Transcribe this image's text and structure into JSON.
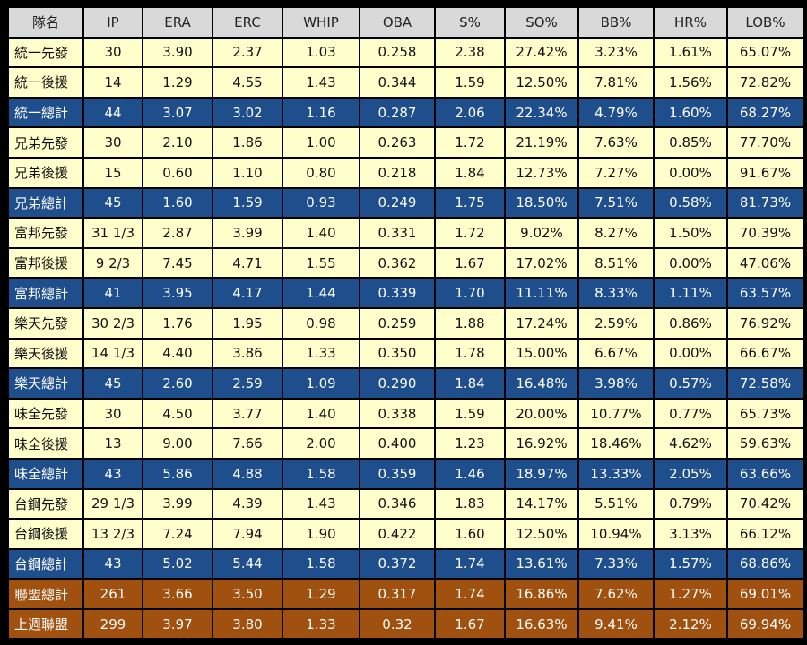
{
  "table": {
    "headers": [
      "隊名",
      "IP",
      "ERA",
      "ERC",
      "WHIP",
      "OBA",
      "S%",
      "SO%",
      "BB%",
      "HR%",
      "LOB%"
    ],
    "rows": [
      {
        "type": "sp",
        "cells": [
          "統一先發",
          "30",
          "3.90",
          "2.37",
          "1.03",
          "0.258",
          "2.38",
          "27.42%",
          "3.23%",
          "1.61%",
          "65.07%"
        ]
      },
      {
        "type": "rp",
        "cells": [
          "統一後援",
          "14",
          "1.29",
          "4.55",
          "1.43",
          "0.344",
          "1.59",
          "12.50%",
          "7.81%",
          "1.56%",
          "72.82%"
        ]
      },
      {
        "type": "team",
        "cells": [
          "統一總計",
          "44",
          "3.07",
          "3.02",
          "1.16",
          "0.287",
          "2.06",
          "22.34%",
          "4.79%",
          "1.60%",
          "68.27%"
        ]
      },
      {
        "type": "sp",
        "cells": [
          "兄弟先發",
          "30",
          "2.10",
          "1.86",
          "1.00",
          "0.263",
          "1.72",
          "21.19%",
          "7.63%",
          "0.85%",
          "77.70%"
        ]
      },
      {
        "type": "rp",
        "cells": [
          "兄弟後援",
          "15",
          "0.60",
          "1.10",
          "0.80",
          "0.218",
          "1.84",
          "12.73%",
          "7.27%",
          "0.00%",
          "91.67%"
        ]
      },
      {
        "type": "team",
        "cells": [
          "兄弟總計",
          "45",
          "1.60",
          "1.59",
          "0.93",
          "0.249",
          "1.75",
          "18.50%",
          "7.51%",
          "0.58%",
          "81.73%"
        ]
      },
      {
        "type": "sp",
        "cells": [
          "富邦先發",
          "31 1/3",
          "2.87",
          "3.99",
          "1.40",
          "0.331",
          "1.72",
          "9.02%",
          "8.27%",
          "1.50%",
          "70.39%"
        ]
      },
      {
        "type": "rp",
        "cells": [
          "富邦後援",
          "9 2/3",
          "7.45",
          "4.71",
          "1.55",
          "0.362",
          "1.67",
          "17.02%",
          "8.51%",
          "0.00%",
          "47.06%"
        ]
      },
      {
        "type": "team",
        "cells": [
          "富邦總計",
          "41",
          "3.95",
          "4.17",
          "1.44",
          "0.339",
          "1.70",
          "11.11%",
          "8.33%",
          "1.11%",
          "63.57%"
        ]
      },
      {
        "type": "sp",
        "cells": [
          "樂天先發",
          "30 2/3",
          "1.76",
          "1.95",
          "0.98",
          "0.259",
          "1.88",
          "17.24%",
          "2.59%",
          "0.86%",
          "76.92%"
        ]
      },
      {
        "type": "rp",
        "cells": [
          "樂天後援",
          "14 1/3",
          "4.40",
          "3.86",
          "1.33",
          "0.350",
          "1.78",
          "15.00%",
          "6.67%",
          "0.00%",
          "66.67%"
        ]
      },
      {
        "type": "team",
        "cells": [
          "樂天總計",
          "45",
          "2.60",
          "2.59",
          "1.09",
          "0.290",
          "1.84",
          "16.48%",
          "3.98%",
          "0.57%",
          "72.58%"
        ]
      },
      {
        "type": "sp",
        "cells": [
          "味全先發",
          "30",
          "4.50",
          "3.77",
          "1.40",
          "0.338",
          "1.59",
          "20.00%",
          "10.77%",
          "0.77%",
          "65.73%"
        ]
      },
      {
        "type": "rp",
        "cells": [
          "味全後援",
          "13",
          "9.00",
          "7.66",
          "2.00",
          "0.400",
          "1.23",
          "16.92%",
          "18.46%",
          "4.62%",
          "59.63%"
        ]
      },
      {
        "type": "team",
        "cells": [
          "味全總計",
          "43",
          "5.86",
          "4.88",
          "1.58",
          "0.359",
          "1.46",
          "18.97%",
          "13.33%",
          "2.05%",
          "63.66%"
        ]
      },
      {
        "type": "sp",
        "cells": [
          "台鋼先發",
          "29 1/3",
          "3.99",
          "4.39",
          "1.43",
          "0.346",
          "1.83",
          "14.17%",
          "5.51%",
          "0.79%",
          "70.42%"
        ]
      },
      {
        "type": "rp",
        "cells": [
          "台鋼後援",
          "13 2/3",
          "7.24",
          "7.94",
          "1.90",
          "0.422",
          "1.60",
          "12.50%",
          "10.94%",
          "3.13%",
          "66.12%"
        ]
      },
      {
        "type": "team",
        "cells": [
          "台鋼總計",
          "43",
          "5.02",
          "5.44",
          "1.58",
          "0.372",
          "1.74",
          "13.61%",
          "7.33%",
          "1.57%",
          "68.86%"
        ]
      },
      {
        "type": "league",
        "cells": [
          "聯盟總計",
          "261",
          "3.66",
          "3.50",
          "1.29",
          "0.317",
          "1.74",
          "16.86%",
          "7.62%",
          "1.27%",
          "69.01%"
        ]
      },
      {
        "type": "lastweek",
        "cells": [
          "上週聯盟",
          "299",
          "3.97",
          "3.80",
          "1.33",
          "0.32",
          "1.67",
          "16.63%",
          "9.41%",
          "2.12%",
          "69.94%"
        ]
      }
    ]
  }
}
